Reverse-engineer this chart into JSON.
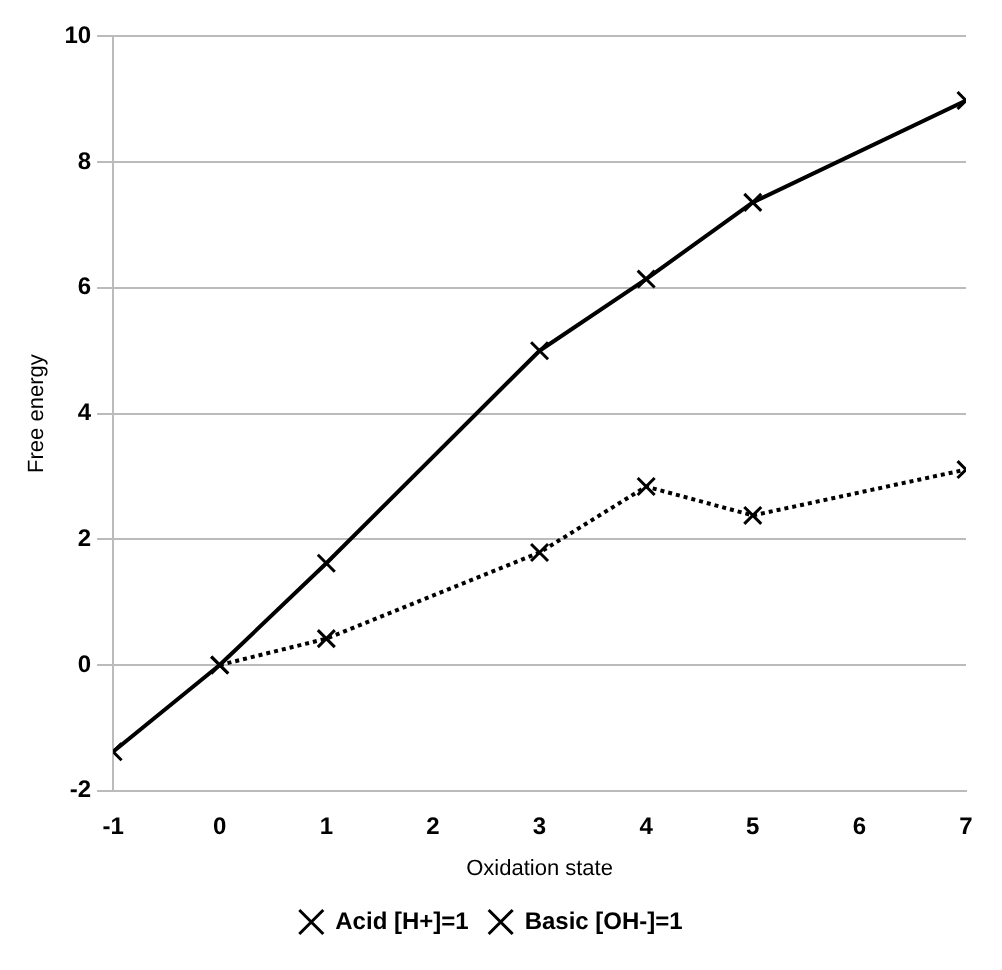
{
  "chart_data": {
    "type": "line",
    "xlabel": "Oxidation state",
    "ylabel": "Free energy",
    "xlim": [
      -1,
      7
    ],
    "xticks": [
      -1,
      0,
      1,
      2,
      3,
      4,
      5,
      6,
      7
    ],
    "ylim": [
      -2,
      10
    ],
    "yticks": [
      -2,
      0,
      2,
      4,
      6,
      8,
      10
    ],
    "grid": "y",
    "legend": "bottom",
    "series": [
      {
        "name": "Acid [H+]=1",
        "color": "#000000",
        "marker": "cross",
        "line_style": "solid",
        "x": [
          -1,
          0,
          1,
          3,
          4,
          5,
          7
        ],
        "values": [
          -1.38,
          0,
          1.62,
          5.0,
          6.14,
          7.36,
          8.98
        ]
      },
      {
        "name": "Basic [OH-]=1",
        "color": "#000000",
        "marker": "cross",
        "line_style": "dotted",
        "x": [
          0,
          1,
          3,
          4,
          5,
          7
        ],
        "values": [
          0,
          0.42,
          1.79,
          2.84,
          2.38,
          3.11
        ]
      }
    ]
  }
}
